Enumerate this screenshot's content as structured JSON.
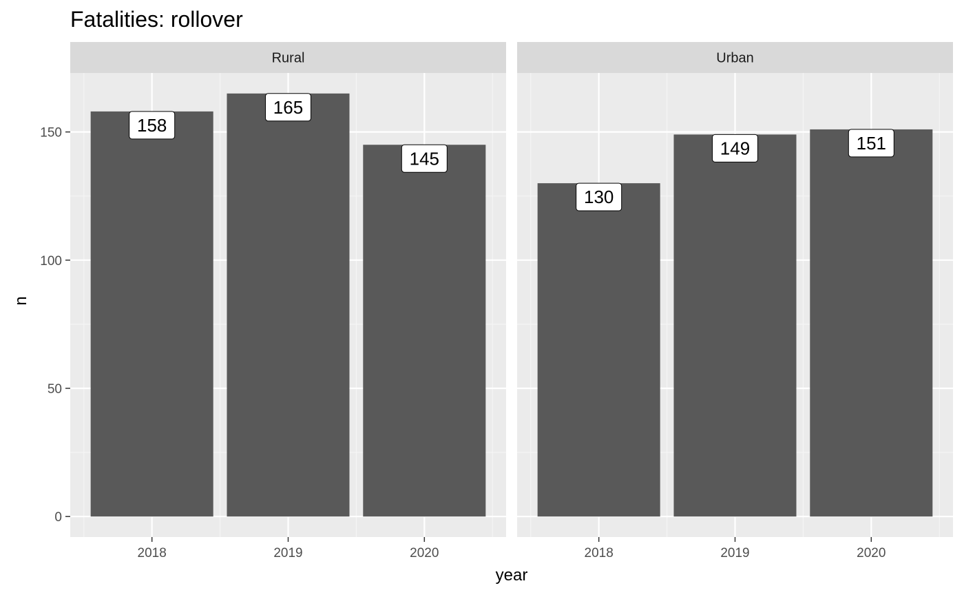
{
  "chart_data": {
    "type": "bar",
    "title": "Fatalities: rollover",
    "xlabel": "year",
    "ylabel": "n",
    "ylim": [
      -8,
      173
    ],
    "yticks": [
      0,
      50,
      100,
      150
    ],
    "grid": true,
    "legend": "none",
    "categories": [
      "2018",
      "2019",
      "2020"
    ],
    "facets": [
      {
        "name": "Rural",
        "values": [
          158,
          165,
          145
        ]
      },
      {
        "name": "Urban",
        "values": [
          130,
          149,
          151
        ]
      }
    ]
  },
  "colors": {
    "bar": "#595959",
    "panel": "#ebebeb",
    "strip": "#d9d9d9",
    "grid_major": "#ffffff",
    "grid_minor": "#f5f5f5",
    "label_fill": "#ffffff",
    "label_border": "#000000"
  }
}
